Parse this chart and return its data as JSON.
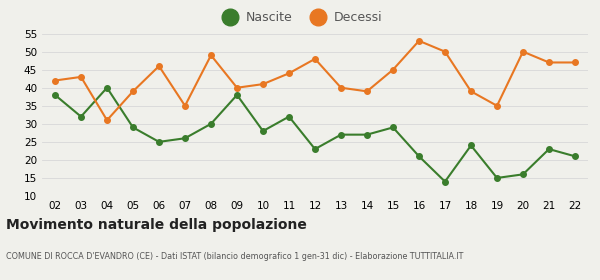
{
  "years": [
    "02",
    "03",
    "04",
    "05",
    "06",
    "07",
    "08",
    "09",
    "10",
    "11",
    "12",
    "13",
    "14",
    "15",
    "16",
    "17",
    "18",
    "19",
    "20",
    "21",
    "22"
  ],
  "nascite": [
    38,
    32,
    40,
    29,
    25,
    26,
    30,
    38,
    28,
    32,
    23,
    27,
    27,
    29,
    21,
    14,
    24,
    15,
    16,
    23,
    21
  ],
  "decessi": [
    42,
    43,
    31,
    39,
    46,
    35,
    49,
    40,
    41,
    44,
    48,
    40,
    39,
    45,
    53,
    50,
    39,
    35,
    50,
    47,
    47
  ],
  "nascite_color": "#3a7d2c",
  "decessi_color": "#e87722",
  "bg_color": "#f0f0eb",
  "ylim": [
    10,
    55
  ],
  "yticks": [
    10,
    15,
    20,
    25,
    30,
    35,
    40,
    45,
    50,
    55
  ],
  "title": "Movimento naturale della popolazione",
  "subtitle": "COMUNE DI ROCCA D'EVANDRO (CE) - Dati ISTAT (bilancio demografico 1 gen-31 dic) - Elaborazione TUTTITALIA.IT",
  "legend_nascite": "Nascite",
  "legend_decessi": "Decessi",
  "grid_color": "#d8d8d8",
  "line_width": 1.5,
  "marker_size": 4,
  "legend_marker_size": 12
}
